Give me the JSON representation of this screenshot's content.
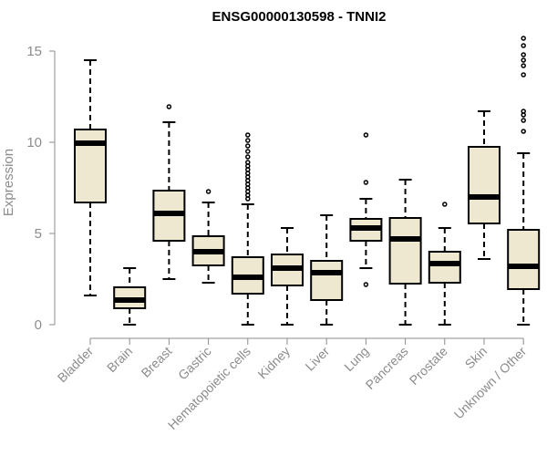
{
  "chart_data": {
    "type": "boxplot",
    "title": "ENSG00000130598 - TNNI2",
    "xlabel": "",
    "ylabel": "Expression",
    "ylim": [
      0,
      15.5
    ],
    "yticks": [
      0,
      5,
      10,
      15
    ],
    "categories": [
      "Bladder",
      "Brain",
      "Breast",
      "Gastric",
      "Hematopoietic cells",
      "Kidney",
      "Liver",
      "Lung",
      "Pancreas",
      "Prostate",
      "Skin",
      "Unknown / Other"
    ],
    "boxes": [
      {
        "name": "Bladder",
        "min": 1.6,
        "q1": 6.7,
        "median": 9.95,
        "q3": 10.7,
        "max": 14.5,
        "outliers": []
      },
      {
        "name": "Brain",
        "min": 0.0,
        "q1": 0.9,
        "median": 1.35,
        "q3": 2.05,
        "max": 3.1,
        "outliers": []
      },
      {
        "name": "Breast",
        "min": 2.5,
        "q1": 4.6,
        "median": 6.1,
        "q3": 7.35,
        "max": 11.1,
        "outliers": [
          11.95
        ]
      },
      {
        "name": "Gastric",
        "min": 2.3,
        "q1": 3.25,
        "median": 4.0,
        "q3": 4.85,
        "max": 6.7,
        "outliers": [
          7.3
        ]
      },
      {
        "name": "Hematopoietic cells",
        "min": 0.0,
        "q1": 1.7,
        "median": 2.6,
        "q3": 3.7,
        "max": 6.6,
        "outliers": [
          6.9,
          7.1,
          7.3,
          7.5,
          7.7,
          7.9,
          8.1,
          8.3,
          8.5,
          8.7,
          8.9,
          9.2,
          9.5,
          9.8,
          10.1,
          10.4
        ]
      },
      {
        "name": "Kidney",
        "min": 0.0,
        "q1": 2.15,
        "median": 3.1,
        "q3": 3.85,
        "max": 5.3,
        "outliers": []
      },
      {
        "name": "Liver",
        "min": 0.0,
        "q1": 1.35,
        "median": 2.85,
        "q3": 3.5,
        "max": 6.0,
        "outliers": []
      },
      {
        "name": "Lung",
        "min": 3.1,
        "q1": 4.6,
        "median": 5.3,
        "q3": 5.8,
        "max": 6.9,
        "outliers": [
          2.2,
          7.8,
          10.4
        ]
      },
      {
        "name": "Pancreas",
        "min": 0.0,
        "q1": 2.25,
        "median": 4.7,
        "q3": 5.85,
        "max": 7.95,
        "outliers": []
      },
      {
        "name": "Prostate",
        "min": 0.0,
        "q1": 2.3,
        "median": 3.35,
        "q3": 4.0,
        "max": 5.3,
        "outliers": [
          6.6
        ]
      },
      {
        "name": "Skin",
        "min": 3.6,
        "q1": 5.55,
        "median": 7.0,
        "q3": 9.75,
        "max": 11.7,
        "outliers": []
      },
      {
        "name": "Unknown / Other",
        "min": 0.0,
        "q1": 1.95,
        "median": 3.2,
        "q3": 5.2,
        "max": 9.4,
        "outliers": [
          10.6,
          11.2,
          11.5,
          11.7,
          13.7,
          14.2,
          14.5,
          14.8,
          15.3,
          15.7
        ]
      }
    ],
    "colors": {
      "box_fill": "#EEE8D0",
      "stroke": "#000000",
      "axis": "#8c8c8c"
    }
  }
}
